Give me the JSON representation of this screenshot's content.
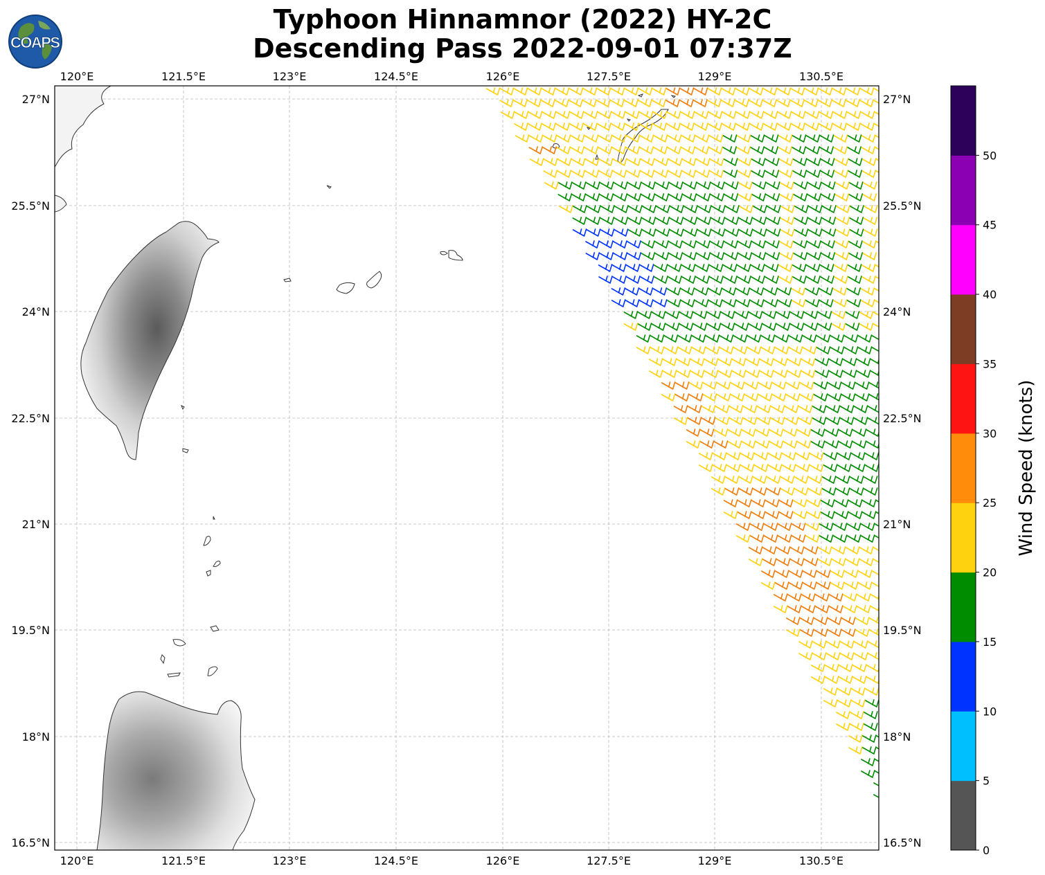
{
  "title": {
    "line1": "Typhoon Hinnamnor (2022) HY-2C",
    "line2": "Descending Pass 2022-09-01 07:37Z"
  },
  "logo": {
    "text": "COAPS",
    "icon": "globe-logo-icon"
  },
  "map": {
    "lon_ticks": [
      "120°E",
      "121.5°E",
      "123°E",
      "124.5°E",
      "126°E",
      "127.5°E",
      "129°E",
      "130.5°E"
    ],
    "lat_ticks": [
      "27°N",
      "25.5°N",
      "24°N",
      "22.5°N",
      "21°N",
      "19.5°N",
      "18°N",
      "16.5°N"
    ],
    "grid": "dashed",
    "features": [
      "Taiwan",
      "Luzon",
      "Ryukyu Islands",
      "Batanes Islands",
      "Babuyan Islands"
    ]
  },
  "colorbar": {
    "label": "Wind Speed (knots)",
    "ticks": [
      "0",
      "5",
      "10",
      "15",
      "20",
      "25",
      "30",
      "35",
      "40",
      "45",
      "50"
    ],
    "bins": [
      {
        "from": 0,
        "to": 5,
        "color": "#555555"
      },
      {
        "from": 5,
        "to": 10,
        "color": "#00bfff"
      },
      {
        "from": 10,
        "to": 15,
        "color": "#0033ff"
      },
      {
        "from": 15,
        "to": 20,
        "color": "#008c00"
      },
      {
        "from": 20,
        "to": 25,
        "color": "#ffd20f"
      },
      {
        "from": 25,
        "to": 30,
        "color": "#ff8c0a"
      },
      {
        "from": 30,
        "to": 35,
        "color": "#ff1414"
      },
      {
        "from": 35,
        "to": 40,
        "color": "#7d3c24"
      },
      {
        "from": 40,
        "to": 45,
        "color": "#ff00ff"
      },
      {
        "from": 45,
        "to": 50,
        "color": "#8c00b4"
      },
      {
        "from": 50,
        "to": 55,
        "color": "#2d005a"
      }
    ]
  },
  "wind_colors": {
    "green": "#008c00",
    "yellow": "#ffd20f",
    "orange": "#f07d0a",
    "blue": "#0033ff"
  }
}
